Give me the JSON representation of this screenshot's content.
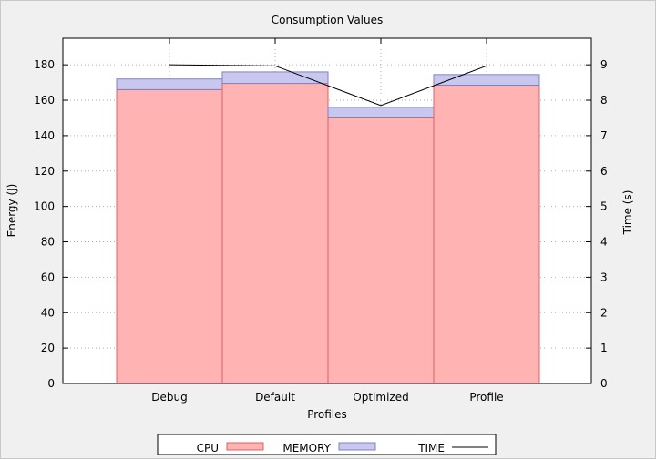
{
  "chart_data": {
    "type": "bar",
    "title": "Consumption Values",
    "xlabel": "Profiles",
    "ylabel": "Energy (J)",
    "y2label": "Time (s)",
    "categories": [
      "Debug",
      "Default",
      "Optimized",
      "Profile"
    ],
    "stacked": true,
    "ylim": [
      0,
      195
    ],
    "y2lim": [
      0,
      9.75
    ],
    "yticks": [
      0,
      20,
      40,
      60,
      80,
      100,
      120,
      140,
      160,
      180
    ],
    "y2ticks": [
      0,
      1,
      2,
      3,
      4,
      5,
      6,
      7,
      8,
      9
    ],
    "grid": true,
    "legend_position": "bottom",
    "series": [
      {
        "name": "CPU",
        "kind": "bar",
        "axis": "left",
        "values": [
          166,
          169.5,
          150.5,
          168.5
        ],
        "color": "#ffb3b3",
        "edge": "#e06060"
      },
      {
        "name": "MEMORY",
        "kind": "bar",
        "axis": "left",
        "values": [
          6,
          6.5,
          5.5,
          6
        ],
        "color": "#c8c8ee",
        "edge": "#8080c8"
      },
      {
        "name": "TIME",
        "kind": "line",
        "axis": "right",
        "values": [
          9.0,
          8.97,
          7.85,
          8.97
        ],
        "color": "#000000"
      }
    ]
  }
}
